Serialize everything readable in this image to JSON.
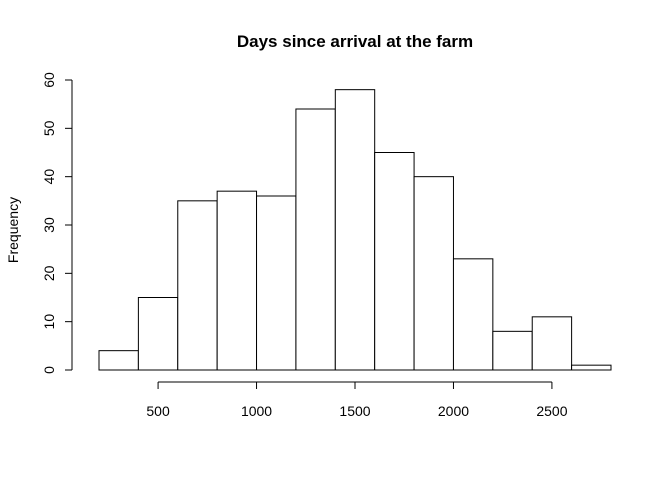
{
  "chart_data": {
    "type": "bar",
    "title": "Days since arrival at the farm",
    "xlabel": "",
    "ylabel": "Frequency",
    "bin_edges": [
      200,
      400,
      600,
      800,
      1000,
      1200,
      1400,
      1600,
      1800,
      2000,
      2200,
      2400,
      2600,
      2800
    ],
    "values": [
      4,
      15,
      35,
      37,
      36,
      54,
      58,
      45,
      40,
      23,
      8,
      11,
      1
    ],
    "xlim": [
      200,
      2800
    ],
    "ylim": [
      0,
      60
    ],
    "xticks": [
      500,
      1000,
      1500,
      2000,
      2500
    ],
    "yticks": [
      0,
      10,
      20,
      30,
      40,
      50,
      60
    ],
    "grid": false,
    "legend": "none",
    "colors": {
      "bar_fill": "#ffffff",
      "bar_stroke": "#000000"
    }
  }
}
